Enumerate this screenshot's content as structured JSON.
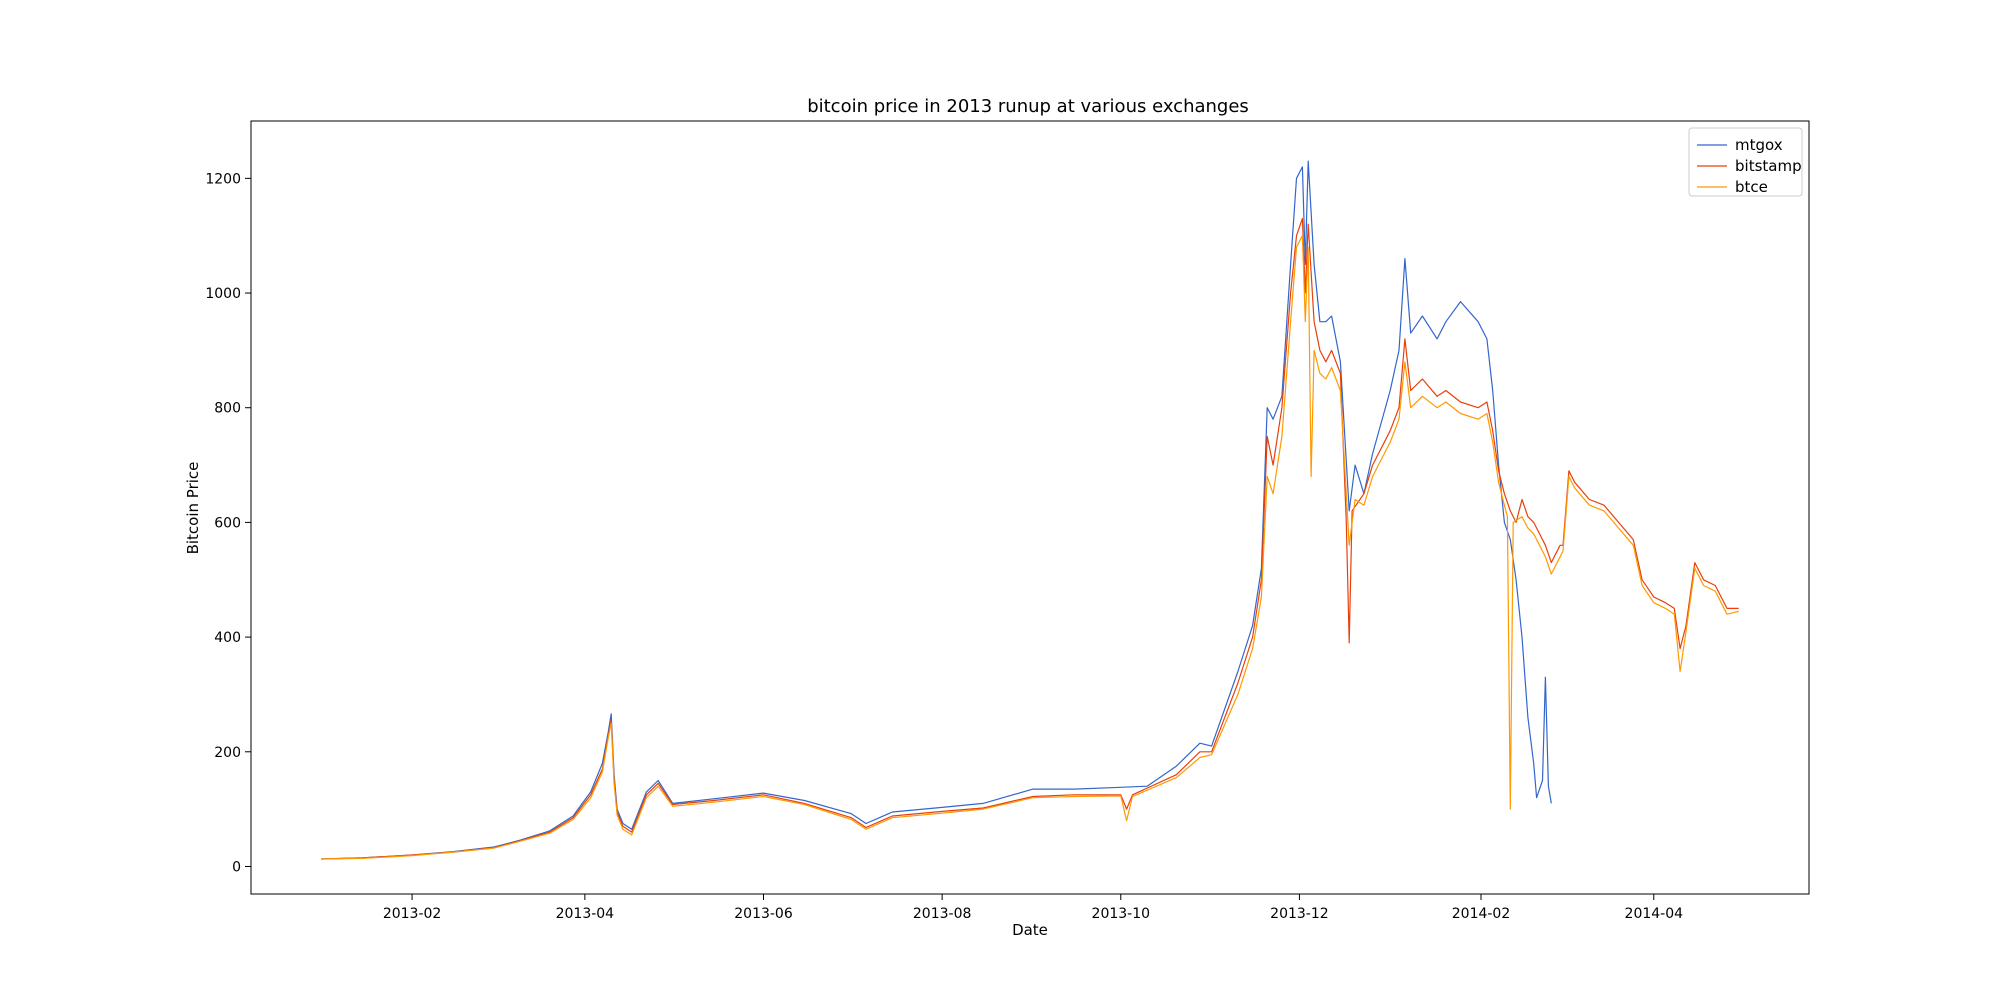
{
  "chart_data": {
    "type": "line",
    "title": "bitcoin price in 2013 runup at various exchanges",
    "xlabel": "Date",
    "ylabel": "Bitcoin Price",
    "x_scale": "date",
    "xlim": [
      "2012-12-08",
      "2014-05-24"
    ],
    "ylim": [
      -48,
      1300
    ],
    "xticks": [
      "2013-02",
      "2013-04",
      "2013-06",
      "2013-08",
      "2013-10",
      "2013-12",
      "2014-02",
      "2014-04"
    ],
    "yticks": [
      0,
      200,
      400,
      600,
      800,
      1000,
      1200
    ],
    "grid": false,
    "legend_position": "top-right",
    "series": [
      {
        "name": "mtgox",
        "color": "#3366cc",
        "points": [
          [
            "2013-01-01",
            13
          ],
          [
            "2013-01-15",
            15
          ],
          [
            "2013-02-01",
            20
          ],
          [
            "2013-02-15",
            26
          ],
          [
            "2013-03-01",
            34
          ],
          [
            "2013-03-10",
            46
          ],
          [
            "2013-03-20",
            62
          ],
          [
            "2013-03-28",
            88
          ],
          [
            "2013-04-03",
            130
          ],
          [
            "2013-04-07",
            180
          ],
          [
            "2013-04-09",
            235
          ],
          [
            "2013-04-10",
            266
          ],
          [
            "2013-04-11",
            160
          ],
          [
            "2013-04-12",
            100
          ],
          [
            "2013-04-14",
            75
          ],
          [
            "2013-04-17",
            65
          ],
          [
            "2013-04-22",
            130
          ],
          [
            "2013-04-26",
            150
          ],
          [
            "2013-05-01",
            110
          ],
          [
            "2013-05-15",
            118
          ],
          [
            "2013-06-01",
            128
          ],
          [
            "2013-06-15",
            115
          ],
          [
            "2013-07-01",
            92
          ],
          [
            "2013-07-06",
            75
          ],
          [
            "2013-07-15",
            95
          ],
          [
            "2013-08-01",
            103
          ],
          [
            "2013-08-15",
            110
          ],
          [
            "2013-09-01",
            135
          ],
          [
            "2013-09-15",
            135
          ],
          [
            "2013-10-01",
            138
          ],
          [
            "2013-10-10",
            140
          ],
          [
            "2013-10-20",
            175
          ],
          [
            "2013-10-28",
            215
          ],
          [
            "2013-11-01",
            210
          ],
          [
            "2013-11-10",
            340
          ],
          [
            "2013-11-15",
            420
          ],
          [
            "2013-11-18",
            520
          ],
          [
            "2013-11-20",
            800
          ],
          [
            "2013-11-22",
            780
          ],
          [
            "2013-11-25",
            820
          ],
          [
            "2013-11-28",
            1050
          ],
          [
            "2013-11-30",
            1200
          ],
          [
            "2013-12-02",
            1220
          ],
          [
            "2013-12-03",
            1050
          ],
          [
            "2013-12-04",
            1230
          ],
          [
            "2013-12-06",
            1050
          ],
          [
            "2013-12-08",
            950
          ],
          [
            "2013-12-10",
            950
          ],
          [
            "2013-12-12",
            960
          ],
          [
            "2013-12-15",
            880
          ],
          [
            "2013-12-18",
            620
          ],
          [
            "2013-12-20",
            700
          ],
          [
            "2013-12-23",
            650
          ],
          [
            "2013-12-26",
            720
          ],
          [
            "2014-01-01",
            830
          ],
          [
            "2014-01-04",
            900
          ],
          [
            "2014-01-06",
            1060
          ],
          [
            "2014-01-08",
            930
          ],
          [
            "2014-01-12",
            960
          ],
          [
            "2014-01-17",
            920
          ],
          [
            "2014-01-20",
            950
          ],
          [
            "2014-01-25",
            985
          ],
          [
            "2014-01-31",
            950
          ],
          [
            "2014-02-03",
            920
          ],
          [
            "2014-02-05",
            830
          ],
          [
            "2014-02-07",
            700
          ],
          [
            "2014-02-09",
            600
          ],
          [
            "2014-02-11",
            570
          ],
          [
            "2014-02-13",
            500
          ],
          [
            "2014-02-15",
            400
          ],
          [
            "2014-02-17",
            260
          ],
          [
            "2014-02-19",
            180
          ],
          [
            "2014-02-20",
            120
          ],
          [
            "2014-02-22",
            150
          ],
          [
            "2014-02-23",
            330
          ],
          [
            "2014-02-24",
            140
          ],
          [
            "2014-02-25",
            110
          ]
        ]
      },
      {
        "name": "bitstamp",
        "color": "#e8400c",
        "points": [
          [
            "2013-01-01",
            13
          ],
          [
            "2013-01-15",
            15
          ],
          [
            "2013-02-01",
            20
          ],
          [
            "2013-02-15",
            25
          ],
          [
            "2013-03-01",
            33
          ],
          [
            "2013-03-10",
            45
          ],
          [
            "2013-03-20",
            60
          ],
          [
            "2013-03-28",
            85
          ],
          [
            "2013-04-03",
            125
          ],
          [
            "2013-04-07",
            170
          ],
          [
            "2013-04-09",
            230
          ],
          [
            "2013-04-10",
            255
          ],
          [
            "2013-04-11",
            150
          ],
          [
            "2013-04-12",
            95
          ],
          [
            "2013-04-14",
            70
          ],
          [
            "2013-04-17",
            60
          ],
          [
            "2013-04-22",
            125
          ],
          [
            "2013-04-26",
            145
          ],
          [
            "2013-05-01",
            108
          ],
          [
            "2013-05-15",
            115
          ],
          [
            "2013-06-01",
            125
          ],
          [
            "2013-06-15",
            110
          ],
          [
            "2013-07-01",
            85
          ],
          [
            "2013-07-06",
            68
          ],
          [
            "2013-07-15",
            88
          ],
          [
            "2013-08-01",
            96
          ],
          [
            "2013-08-15",
            102
          ],
          [
            "2013-09-01",
            122
          ],
          [
            "2013-09-15",
            125
          ],
          [
            "2013-10-01",
            125
          ],
          [
            "2013-10-03",
            100
          ],
          [
            "2013-10-05",
            125
          ],
          [
            "2013-10-20",
            160
          ],
          [
            "2013-10-28",
            200
          ],
          [
            "2013-11-01",
            200
          ],
          [
            "2013-11-10",
            320
          ],
          [
            "2013-11-15",
            400
          ],
          [
            "2013-11-18",
            500
          ],
          [
            "2013-11-20",
            750
          ],
          [
            "2013-11-22",
            700
          ],
          [
            "2013-11-25",
            800
          ],
          [
            "2013-11-28",
            1000
          ],
          [
            "2013-11-30",
            1100
          ],
          [
            "2013-12-02",
            1130
          ],
          [
            "2013-12-03",
            1000
          ],
          [
            "2013-12-04",
            1120
          ],
          [
            "2013-12-06",
            950
          ],
          [
            "2013-12-08",
            900
          ],
          [
            "2013-12-10",
            880
          ],
          [
            "2013-12-12",
            900
          ],
          [
            "2013-12-15",
            860
          ],
          [
            "2013-12-17",
            600
          ],
          [
            "2013-12-18",
            390
          ],
          [
            "2013-12-19",
            620
          ],
          [
            "2013-12-23",
            650
          ],
          [
            "2013-12-26",
            700
          ],
          [
            "2014-01-01",
            760
          ],
          [
            "2014-01-04",
            800
          ],
          [
            "2014-01-06",
            920
          ],
          [
            "2014-01-08",
            830
          ],
          [
            "2014-01-12",
            850
          ],
          [
            "2014-01-17",
            820
          ],
          [
            "2014-01-20",
            830
          ],
          [
            "2014-01-25",
            810
          ],
          [
            "2014-01-31",
            800
          ],
          [
            "2014-02-03",
            810
          ],
          [
            "2014-02-05",
            760
          ],
          [
            "2014-02-07",
            690
          ],
          [
            "2014-02-09",
            650
          ],
          [
            "2014-02-11",
            620
          ],
          [
            "2014-02-13",
            600
          ],
          [
            "2014-02-15",
            640
          ],
          [
            "2014-02-17",
            610
          ],
          [
            "2014-02-19",
            600
          ],
          [
            "2014-02-21",
            580
          ],
          [
            "2014-02-23",
            560
          ],
          [
            "2014-02-25",
            530
          ],
          [
            "2014-02-28",
            560
          ],
          [
            "2014-03-01",
            560
          ],
          [
            "2014-03-03",
            690
          ],
          [
            "2014-03-05",
            670
          ],
          [
            "2014-03-10",
            640
          ],
          [
            "2014-03-15",
            630
          ],
          [
            "2014-03-20",
            600
          ],
          [
            "2014-03-25",
            570
          ],
          [
            "2014-03-28",
            500
          ],
          [
            "2014-04-01",
            470
          ],
          [
            "2014-04-05",
            460
          ],
          [
            "2014-04-08",
            450
          ],
          [
            "2014-04-10",
            380
          ],
          [
            "2014-04-12",
            420
          ],
          [
            "2014-04-15",
            530
          ],
          [
            "2014-04-18",
            500
          ],
          [
            "2014-04-22",
            490
          ],
          [
            "2014-04-26",
            450
          ],
          [
            "2014-04-30",
            450
          ]
        ]
      },
      {
        "name": "btce",
        "color": "#ff9900",
        "points": [
          [
            "2013-01-01",
            13
          ],
          [
            "2013-01-15",
            14
          ],
          [
            "2013-02-01",
            19
          ],
          [
            "2013-02-15",
            25
          ],
          [
            "2013-03-01",
            32
          ],
          [
            "2013-03-10",
            44
          ],
          [
            "2013-03-20",
            58
          ],
          [
            "2013-03-28",
            82
          ],
          [
            "2013-04-03",
            120
          ],
          [
            "2013-04-07",
            165
          ],
          [
            "2013-04-09",
            225
          ],
          [
            "2013-04-10",
            250
          ],
          [
            "2013-04-11",
            145
          ],
          [
            "2013-04-12",
            90
          ],
          [
            "2013-04-14",
            65
          ],
          [
            "2013-04-17",
            55
          ],
          [
            "2013-04-22",
            120
          ],
          [
            "2013-04-26",
            140
          ],
          [
            "2013-05-01",
            105
          ],
          [
            "2013-05-15",
            112
          ],
          [
            "2013-06-01",
            122
          ],
          [
            "2013-06-15",
            108
          ],
          [
            "2013-07-01",
            82
          ],
          [
            "2013-07-06",
            65
          ],
          [
            "2013-07-15",
            85
          ],
          [
            "2013-08-01",
            93
          ],
          [
            "2013-08-15",
            100
          ],
          [
            "2013-09-01",
            120
          ],
          [
            "2013-09-15",
            122
          ],
          [
            "2013-10-01",
            123
          ],
          [
            "2013-10-03",
            80
          ],
          [
            "2013-10-05",
            122
          ],
          [
            "2013-10-20",
            155
          ],
          [
            "2013-10-28",
            190
          ],
          [
            "2013-11-01",
            195
          ],
          [
            "2013-11-10",
            300
          ],
          [
            "2013-11-15",
            380
          ],
          [
            "2013-11-18",
            470
          ],
          [
            "2013-11-20",
            680
          ],
          [
            "2013-11-22",
            650
          ],
          [
            "2013-11-25",
            750
          ],
          [
            "2013-11-28",
            950
          ],
          [
            "2013-11-30",
            1080
          ],
          [
            "2013-12-02",
            1100
          ],
          [
            "2013-12-03",
            950
          ],
          [
            "2013-12-04",
            1080
          ],
          [
            "2013-12-05",
            680
          ],
          [
            "2013-12-06",
            900
          ],
          [
            "2013-12-08",
            860
          ],
          [
            "2013-12-10",
            850
          ],
          [
            "2013-12-12",
            870
          ],
          [
            "2013-12-15",
            830
          ],
          [
            "2013-12-18",
            560
          ],
          [
            "2013-12-20",
            640
          ],
          [
            "2013-12-23",
            630
          ],
          [
            "2013-12-26",
            680
          ],
          [
            "2014-01-01",
            740
          ],
          [
            "2014-01-04",
            780
          ],
          [
            "2014-01-06",
            880
          ],
          [
            "2014-01-08",
            800
          ],
          [
            "2014-01-12",
            820
          ],
          [
            "2014-01-17",
            800
          ],
          [
            "2014-01-20",
            810
          ],
          [
            "2014-01-25",
            790
          ],
          [
            "2014-01-31",
            780
          ],
          [
            "2014-02-03",
            790
          ],
          [
            "2014-02-05",
            740
          ],
          [
            "2014-02-07",
            670
          ],
          [
            "2014-02-09",
            630
          ],
          [
            "2014-02-10",
            610
          ],
          [
            "2014-02-11",
            100
          ],
          [
            "2014-02-12",
            600
          ],
          [
            "2014-02-15",
            610
          ],
          [
            "2014-02-17",
            590
          ],
          [
            "2014-02-19",
            580
          ],
          [
            "2014-02-21",
            560
          ],
          [
            "2014-02-23",
            540
          ],
          [
            "2014-02-25",
            510
          ],
          [
            "2014-02-28",
            540
          ],
          [
            "2014-03-01",
            550
          ],
          [
            "2014-03-03",
            680
          ],
          [
            "2014-03-05",
            660
          ],
          [
            "2014-03-10",
            630
          ],
          [
            "2014-03-15",
            620
          ],
          [
            "2014-03-20",
            590
          ],
          [
            "2014-03-25",
            560
          ],
          [
            "2014-03-28",
            490
          ],
          [
            "2014-04-01",
            460
          ],
          [
            "2014-04-05",
            450
          ],
          [
            "2014-04-08",
            440
          ],
          [
            "2014-04-10",
            340
          ],
          [
            "2014-04-12",
            410
          ],
          [
            "2014-04-15",
            520
          ],
          [
            "2014-04-18",
            490
          ],
          [
            "2014-04-22",
            480
          ],
          [
            "2014-04-26",
            440
          ],
          [
            "2014-04-30",
            445
          ]
        ]
      }
    ]
  }
}
